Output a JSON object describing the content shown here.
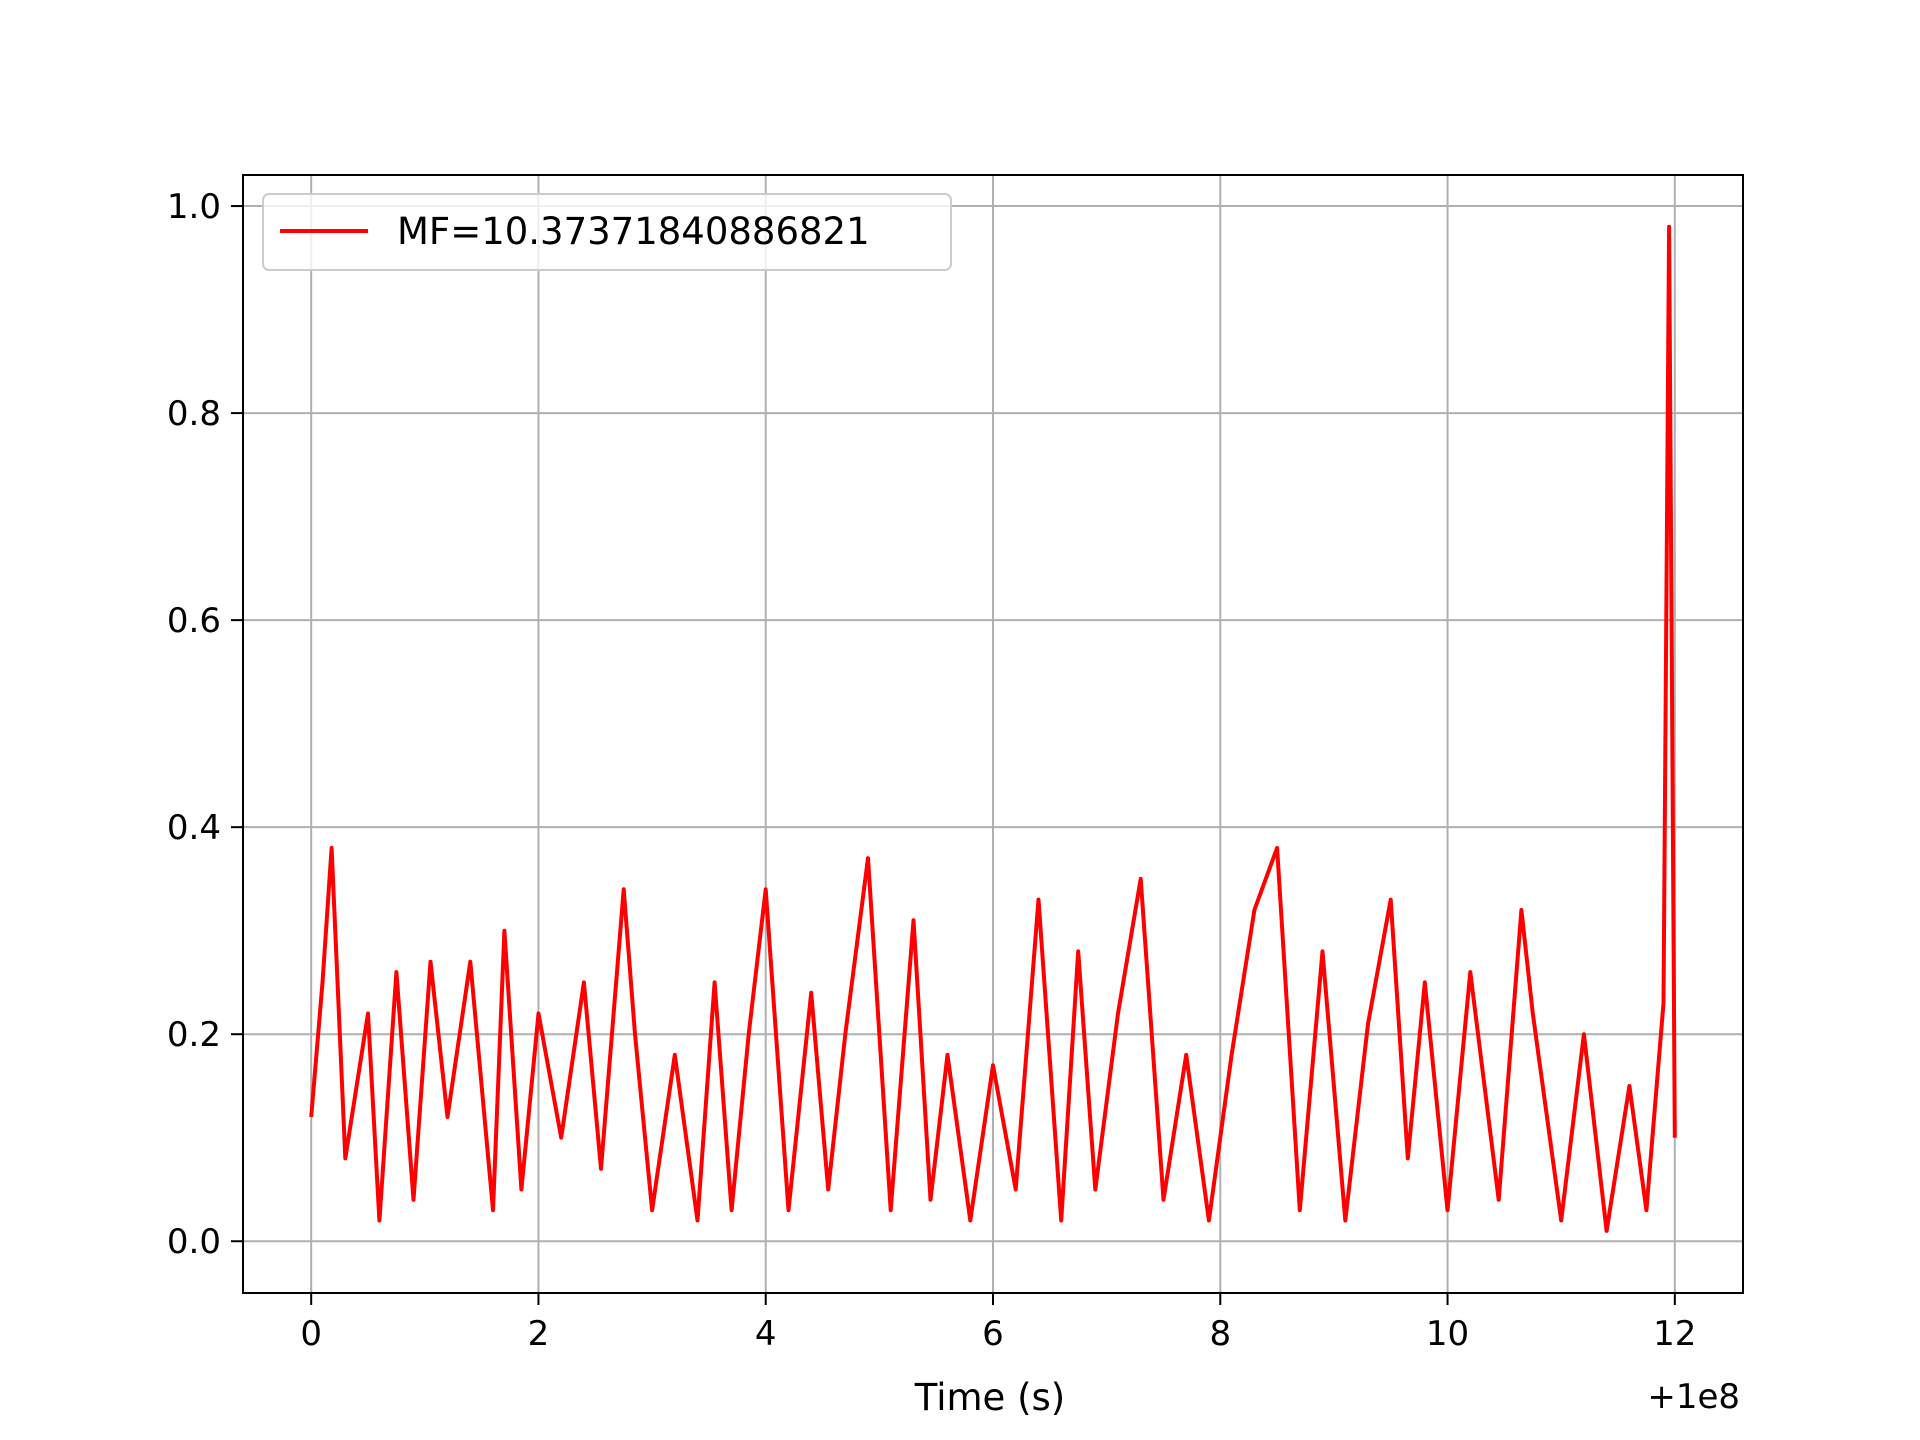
{
  "chart_data": {
    "type": "line",
    "title": "",
    "xlabel": "Time (s)",
    "ylabel": "",
    "x_offset_label": "+1e8",
    "xlim": [
      -0.6,
      12.6
    ],
    "ylim": [
      -0.05,
      1.03
    ],
    "xticks": [
      0,
      2,
      4,
      6,
      8,
      10,
      12
    ],
    "yticks": [
      0.0,
      0.2,
      0.4,
      0.6,
      0.8,
      1.0
    ],
    "xtick_labels": [
      "0",
      "2",
      "4",
      "6",
      "8",
      "10",
      "12"
    ],
    "ytick_labels": [
      "0.0",
      "0.2",
      "0.4",
      "0.6",
      "0.8",
      "1.0"
    ],
    "grid": true,
    "legend_position": "upper left",
    "series": [
      {
        "name": "MF=10.37371840886821",
        "color": "#ff0000",
        "x": [
          0,
          0.1,
          0.18,
          0.3,
          0.5,
          0.6,
          0.75,
          0.9,
          1.05,
          1.2,
          1.4,
          1.6,
          1.7,
          1.85,
          2.0,
          2.2,
          2.4,
          2.55,
          2.75,
          2.85,
          3.0,
          3.2,
          3.4,
          3.55,
          3.7,
          3.85,
          4.0,
          4.2,
          4.4,
          4.55,
          4.7,
          4.9,
          5.1,
          5.3,
          5.45,
          5.6,
          5.8,
          6.0,
          6.2,
          6.4,
          6.6,
          6.75,
          6.9,
          7.1,
          7.3,
          7.5,
          7.7,
          7.9,
          8.1,
          8.3,
          8.5,
          8.7,
          8.9,
          9.1,
          9.3,
          9.5,
          9.65,
          9.8,
          10.0,
          10.2,
          10.45,
          10.65,
          10.75,
          11.0,
          11.2,
          11.4,
          11.6,
          11.75,
          11.9,
          11.95,
          12.0
        ],
        "values": [
          0.12,
          0.25,
          0.38,
          0.08,
          0.22,
          0.02,
          0.26,
          0.04,
          0.27,
          0.12,
          0.27,
          0.03,
          0.3,
          0.05,
          0.22,
          0.1,
          0.25,
          0.07,
          0.34,
          0.2,
          0.03,
          0.18,
          0.02,
          0.25,
          0.03,
          0.2,
          0.34,
          0.03,
          0.24,
          0.05,
          0.2,
          0.37,
          0.03,
          0.31,
          0.04,
          0.18,
          0.02,
          0.17,
          0.05,
          0.33,
          0.02,
          0.28,
          0.05,
          0.22,
          0.35,
          0.04,
          0.18,
          0.02,
          0.18,
          0.32,
          0.38,
          0.03,
          0.28,
          0.02,
          0.21,
          0.33,
          0.08,
          0.25,
          0.03,
          0.26,
          0.04,
          0.32,
          0.22,
          0.02,
          0.2,
          0.01,
          0.15,
          0.03,
          0.23,
          0.98,
          0.1
        ]
      }
    ]
  }
}
